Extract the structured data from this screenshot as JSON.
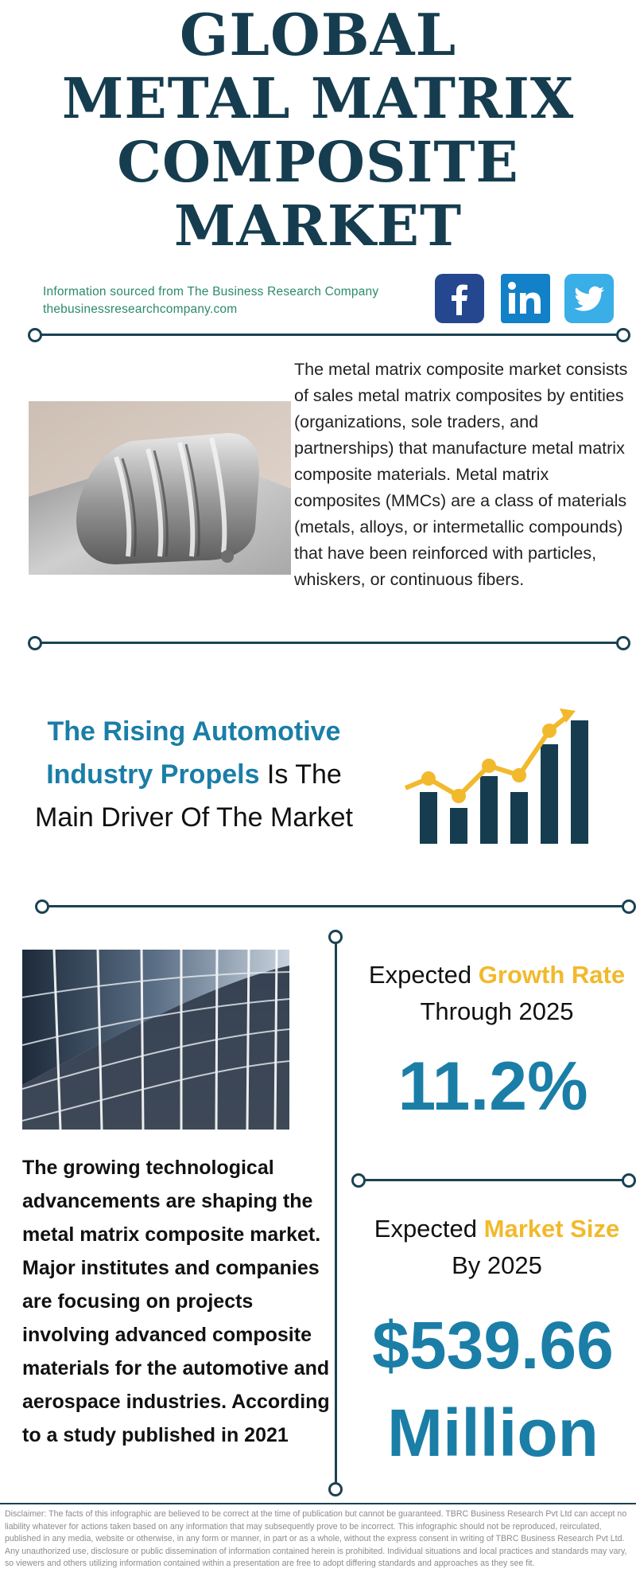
{
  "title": {
    "line1": "GLOBAL",
    "line2": "METAL MATRIX",
    "line3": "COMPOSITE",
    "line4": "MARKET"
  },
  "source": {
    "text": "Information sourced from The Business Research Company",
    "url": "thebusinessresearchcompany.com"
  },
  "social": {
    "facebook": "facebook-icon",
    "linkedin": "linkedin-icon",
    "twitter": "twitter-icon",
    "colors": {
      "facebook": "#24478f",
      "linkedin": "#1281c7",
      "twitter": "#3aaee6"
    }
  },
  "intro": {
    "image": "metal-composite-part-photo",
    "text": "The metal matrix composite market consists of sales metal matrix composites by entities (organizations, sole traders, and partnerships) that manufacture metal matrix composite materials. Metal matrix composites (MMCs) are a class of materials (metals, alloys, or intermetallic compounds) that have been reinforced with particles, whiskers, or continuous fibers."
  },
  "driver": {
    "highlight_line1": "The Rising Automotive",
    "highlight_line2": "Industry Propels",
    "rest_line2": " Is The",
    "line3": "Main Driver Of The Market",
    "icon": "growth-bar-chart-icon"
  },
  "trend": {
    "image": "glass-building-photo",
    "text": "The growing technological advancements are shaping the metal matrix composite market. Major institutes and companies are focusing on projects involving advanced composite materials for the automotive and aerospace industries. According to a study published in 2021"
  },
  "growth": {
    "prefix": "Expected ",
    "highlight": "Growth Rate",
    "line2": "Through 2025",
    "value": "11.2%"
  },
  "market_size": {
    "prefix": "Expected ",
    "highlight": "Market Size",
    "line2": "By 2025",
    "value_line1": "$539.66",
    "value_line2": "Million"
  },
  "disclaimer": "Disclaimer: The facts of this infographic are believed to be correct at the time of publication but cannot be guaranteed. TBRC Business Research Pvt Ltd can accept no liability whatever for actions taken based on any information that may subsequently prove to be incorrect. This infographic should not be reproduced, reirculated, published in any media, website or otherwise, in any form or manner, in part or as a whole, without the express consent in writing of TBRC Business Research Pvt Ltd. Any unauthorized use, disclosure or public dissemination of information contained herein is prohibited. Individual situations and local practices and standards may vary, so viewers and others utilizing information contained within a presentation are free to adopt differing standards and approaches as they see fit.",
  "colors": {
    "navy": "#163d4f",
    "teal_blue": "#1a7ea7",
    "gold": "#f2b92c",
    "green_text": "#2b8a6e"
  }
}
